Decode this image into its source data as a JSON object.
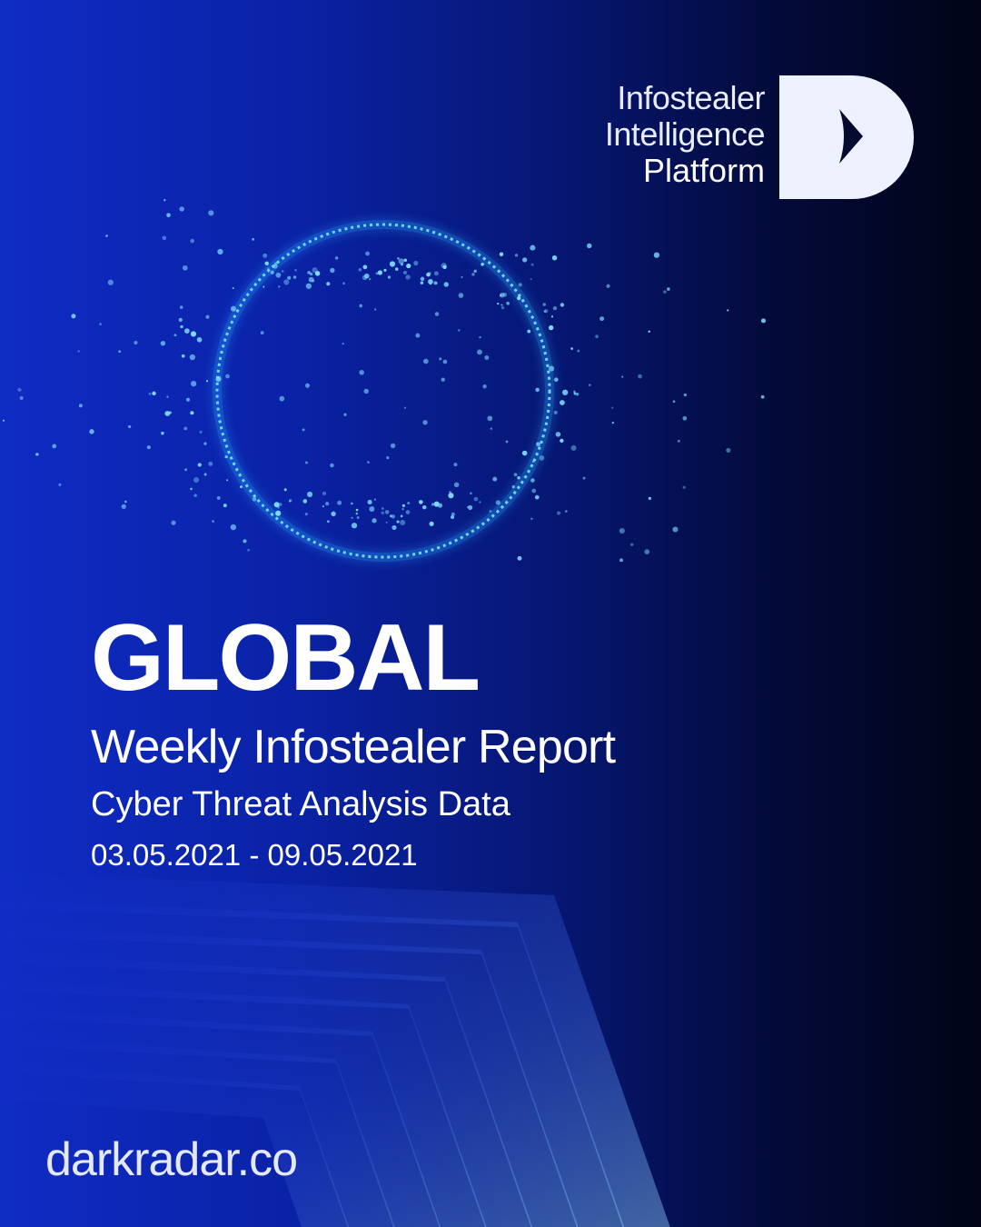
{
  "brand": {
    "line1": "Infostealer",
    "line2": "Intelligence",
    "line3": "Platform",
    "logo_icon": "d-arrow-logo"
  },
  "report": {
    "title": "GLOBAL",
    "subtitle": "Weekly Infostealer Report",
    "tagline": "Cyber Threat Analysis Data",
    "date_range": "03.05.2021 - 09.05.2021"
  },
  "footer": {
    "website": "darkradar.co"
  },
  "colors": {
    "accent_glow": "#3fc6ff",
    "background": "#0a22a6"
  }
}
